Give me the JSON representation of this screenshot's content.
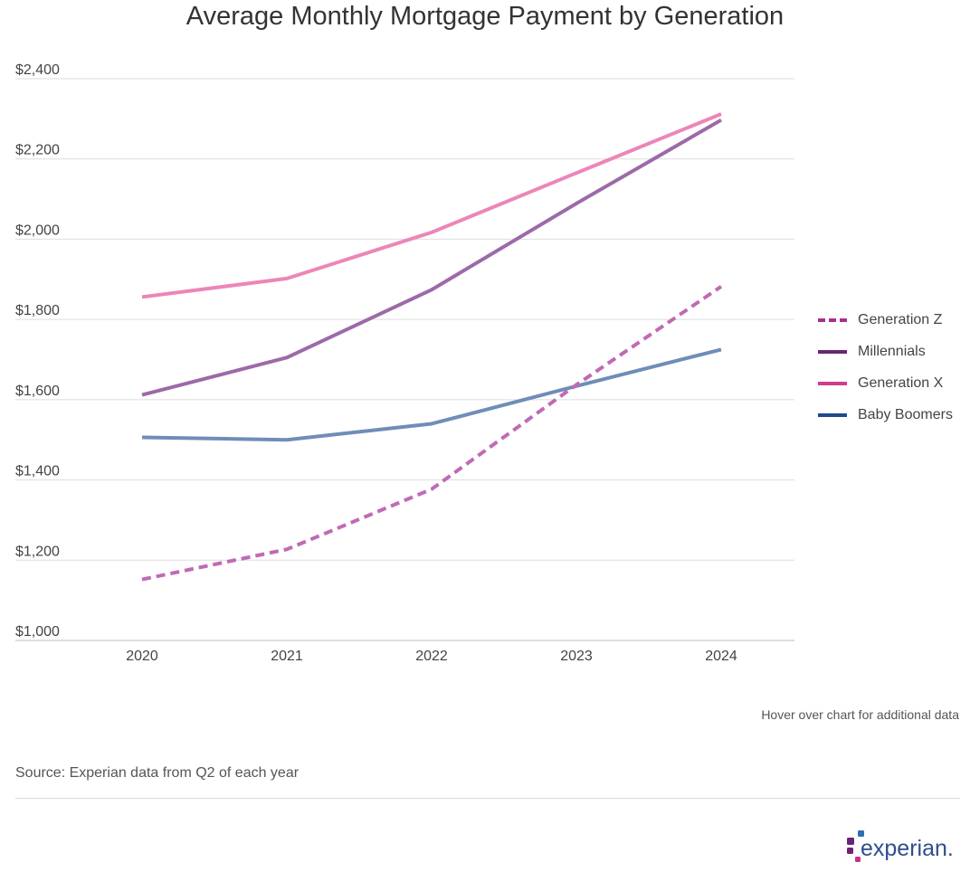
{
  "chart_data": {
    "type": "line",
    "title": "Average Monthly Mortgage Payment by Generation",
    "x": [
      "2020",
      "2021",
      "2022",
      "2023",
      "2024"
    ],
    "ylim": [
      1000,
      2400
    ],
    "yticks": [
      1000,
      1200,
      1400,
      1600,
      1800,
      2000,
      2200,
      2400
    ],
    "ytick_labels": [
      "$1,000",
      "$1,200",
      "$1,400",
      "$1,600",
      "$1,800",
      "$2,000",
      "$2,200",
      "$2,400"
    ],
    "grid": "horizontal",
    "legend_position": "right",
    "series": [
      {
        "name": "Generation Z",
        "values": [
          1152,
          1227,
          1377,
          1637,
          1882
        ],
        "color": "#c06ab6",
        "legend_color": "#a8308f",
        "dash": true
      },
      {
        "name": "Millennials",
        "values": [
          1612,
          1705,
          1874,
          2089,
          2297
        ],
        "color": "#9c6aa8",
        "legend_color": "#6b2474",
        "dash": false
      },
      {
        "name": "Generation X",
        "values": [
          1856,
          1902,
          2017,
          2165,
          2312
        ],
        "color": "#ec86b8",
        "legend_color": "#d23c8c",
        "dash": false
      },
      {
        "name": "Baby Boomers",
        "values": [
          1506,
          1500,
          1540,
          1634,
          1725
        ],
        "color": "#6f8db8",
        "legend_color": "#1f4a8a",
        "dash": false
      }
    ]
  },
  "footer": {
    "hover_note": "Hover over chart for additional data",
    "source": "Source: Experian data from Q2 of each year",
    "logo_text": "experian."
  }
}
